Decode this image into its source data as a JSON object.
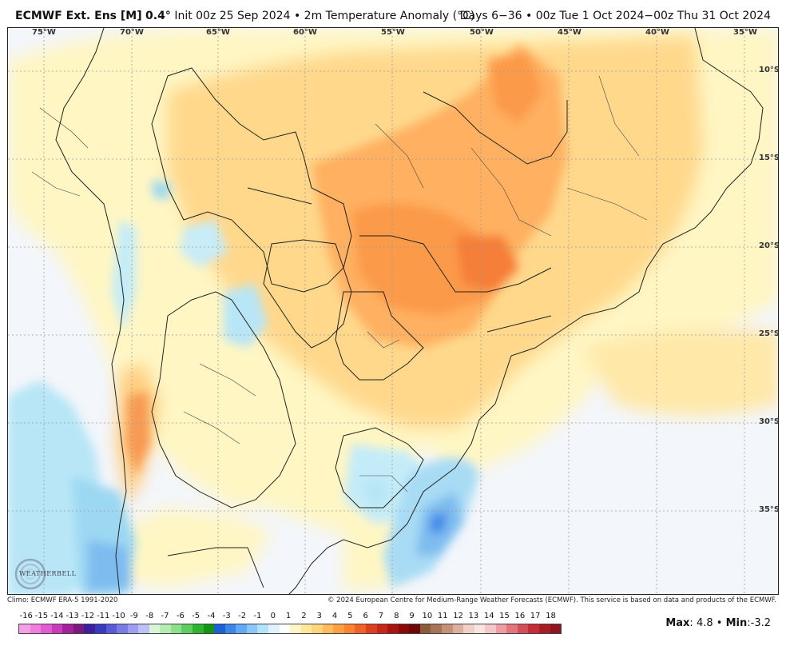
{
  "header": {
    "model_name": "ECMWF Ext. Ens [M]",
    "resolution": "0.4°",
    "init_text": "Init 00z 25 Sep 2024",
    "separator": "•",
    "product": "2m Temperature Anomaly (°C)",
    "period_text": "Days 6−36 • 00z Tue 1 Oct 2024−00z Thu 31 Oct 2024"
  },
  "map": {
    "lon_labels": [
      "75°W",
      "70°W",
      "65°W",
      "60°W",
      "55°W",
      "50°W",
      "45°W",
      "40°W",
      "35°W"
    ],
    "lat_labels": [
      "10°S",
      "15°S",
      "20°S",
      "25°S",
      "30°S",
      "35°S"
    ]
  },
  "credits": {
    "climo": "Climo: ECMWF ERA-5 1991-2020",
    "copyright": "© 2024 European Centre for Medium-Range Weather Forecasts (ECMWF). This service is based on data and products of the ECMWF."
  },
  "colorbar": {
    "labels": [
      "-16",
      "-15",
      "-14",
      "-13",
      "-12",
      "-11",
      "-10",
      "-9",
      "-8",
      "-7",
      "-6",
      "-5",
      "-4",
      "-3",
      "-2",
      "-1",
      "0",
      "1",
      "2",
      "3",
      "4",
      "5",
      "6",
      "7",
      "8",
      "9",
      "10",
      "11",
      "12",
      "13",
      "14",
      "15",
      "16",
      "17",
      "18"
    ],
    "colors": [
      "#f5a0e6",
      "#ee7fdc",
      "#e25cd0",
      "#c93bb8",
      "#a3229a",
      "#7a1a7e",
      "#3b1f9e",
      "#3a3ac0",
      "#5a5ad8",
      "#7b7be6",
      "#9e9ef0",
      "#c0c0f8",
      "#d8f5d8",
      "#b4ecb4",
      "#8ce08c",
      "#5fcc5f",
      "#2fb22f",
      "#149414",
      "#1e5fd8",
      "#3c86e8",
      "#62a8f2",
      "#8cc6f7",
      "#b4e2fb",
      "#dff3fd",
      "#ffffff",
      "#fff6c8",
      "#ffe89a",
      "#ffd47a",
      "#ffbb5c",
      "#ffa045",
      "#fa8232",
      "#f06226",
      "#de401e",
      "#c82618",
      "#a81410",
      "#8a0a0a",
      "#6e0808",
      "#8c5a3c",
      "#a87458",
      "#c49078",
      "#dcb0a0",
      "#f0d0c8",
      "#f8e4e0",
      "#f4c8c8",
      "#ec9ea2",
      "#e2767c",
      "#d44e58",
      "#c42c38",
      "#a81e28",
      "#8c1620"
    ],
    "max_label": "Max",
    "max_value": "4.8",
    "min_label": "Min",
    "min_value": "-3.2"
  },
  "logo": {
    "text": "WEATHERBELL"
  }
}
